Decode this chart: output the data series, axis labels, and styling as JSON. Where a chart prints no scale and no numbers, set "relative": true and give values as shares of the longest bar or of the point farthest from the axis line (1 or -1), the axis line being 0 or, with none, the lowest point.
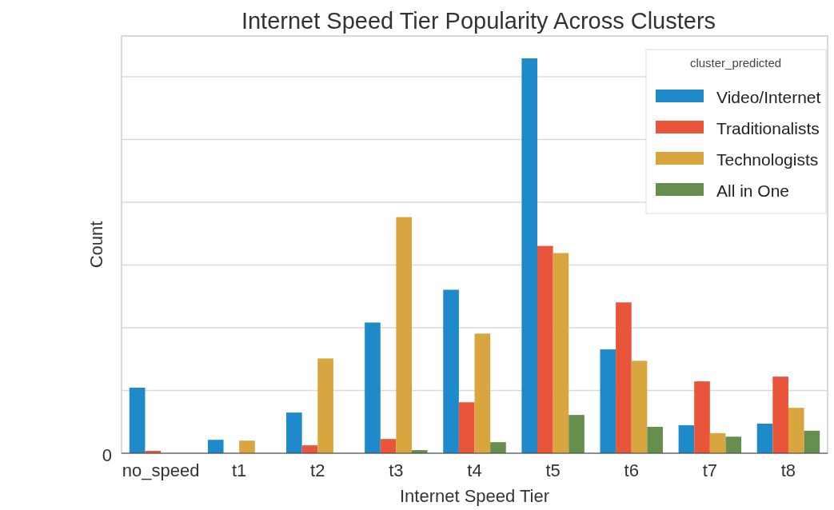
{
  "chart_data": {
    "type": "bar",
    "title": "Internet Speed Tier Popularity Across Clusters",
    "xlabel": "Internet Speed Tier",
    "ylabel": "Count",
    "legend_title": "cluster_predicted",
    "relative": true,
    "grid": "y",
    "legend": "top right",
    "annotations": [
      "0"
    ],
    "categories": [
      "no_speed",
      "t1",
      "t2",
      "t3",
      "t4",
      "t5",
      "t6",
      "t7",
      "t8"
    ],
    "series": [
      {
        "name": "Video/Internet",
        "color": "#1f8ac9",
        "values": [
          0.166,
          0.034,
          0.103,
          0.331,
          0.414,
          1,
          0.263,
          0.071,
          0.075
        ]
      },
      {
        "name": "Traditionalists",
        "color": "#e8553a",
        "values": [
          0.006,
          0,
          0.02,
          0.036,
          0.129,
          0.525,
          0.382,
          0.182,
          0.194
        ]
      },
      {
        "name": "Technologists",
        "color": "#d9a53f",
        "values": [
          0,
          0.032,
          0.24,
          0.598,
          0.303,
          0.507,
          0.234,
          0.051,
          0.115
        ]
      },
      {
        "name": "All in One",
        "color": "#668f4f",
        "values": [
          0,
          0,
          0,
          0.008,
          0.028,
          0.097,
          0.067,
          0.042,
          0.057
        ]
      }
    ]
  }
}
